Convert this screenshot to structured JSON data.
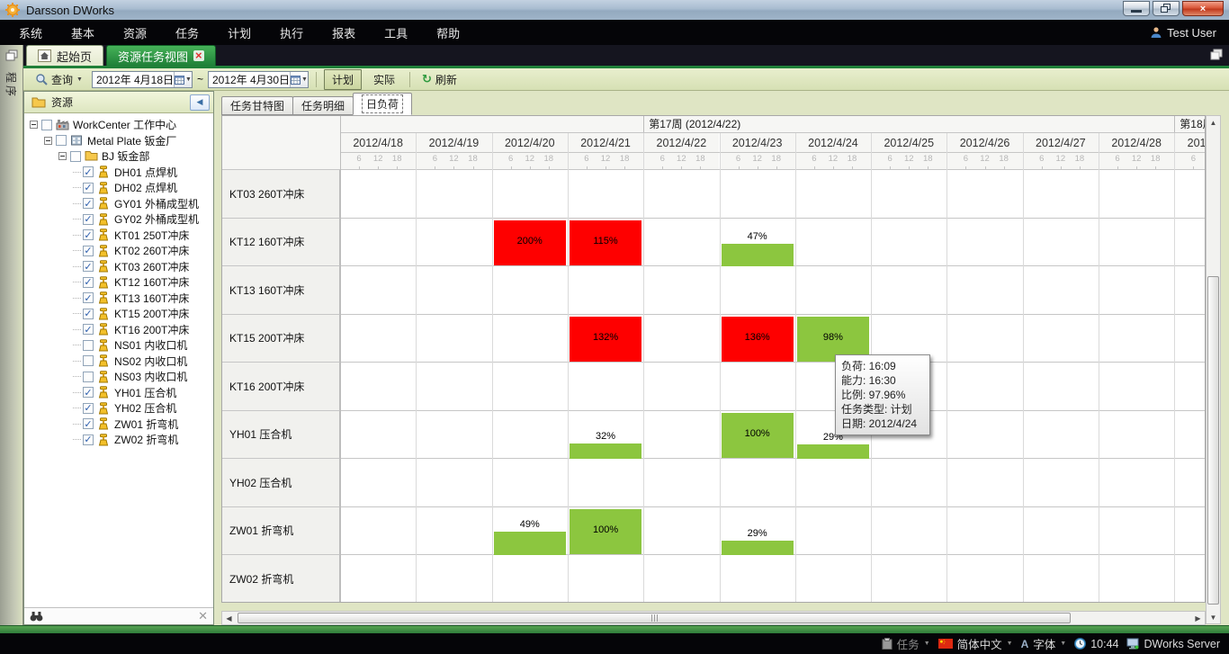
{
  "window": {
    "title": "Darsson DWorks"
  },
  "menu": {
    "items": [
      "系统",
      "基本",
      "资源",
      "任务",
      "计划",
      "执行",
      "报表",
      "工具",
      "帮助"
    ],
    "user": "Test User"
  },
  "doc_tabs": {
    "home": "起始页",
    "active": "资源任务视图"
  },
  "side_strip": {
    "label": "程序"
  },
  "toolbar": {
    "search": "查询",
    "date_from": "2012年 4月18日",
    "range_sep": "~",
    "date_to": "2012年 4月30日",
    "plan": "计划",
    "actual": "实际",
    "refresh": "刷新"
  },
  "tree": {
    "title": "资源",
    "nodes": [
      {
        "level": 0,
        "label": "WorkCenter 工作中心",
        "icon": "workcenter",
        "checked": false,
        "expander": true
      },
      {
        "level": 1,
        "label": "Metal Plate 钣金厂",
        "icon": "plant",
        "checked": false,
        "expander": true
      },
      {
        "level": 2,
        "label": "BJ 钣金部",
        "icon": "folder",
        "checked": false,
        "expander": true
      },
      {
        "level": 3,
        "label": "DH01 点焊机",
        "icon": "machine",
        "checked": true
      },
      {
        "level": 3,
        "label": "DH02 点焊机",
        "icon": "machine",
        "checked": true
      },
      {
        "level": 3,
        "label": "GY01 外桶成型机",
        "icon": "machine",
        "checked": true
      },
      {
        "level": 3,
        "label": "GY02 外桶成型机",
        "icon": "machine",
        "checked": true
      },
      {
        "level": 3,
        "label": "KT01 250T冲床",
        "icon": "machine",
        "checked": true
      },
      {
        "level": 3,
        "label": "KT02 260T冲床",
        "icon": "machine",
        "checked": true
      },
      {
        "level": 3,
        "label": "KT03 260T冲床",
        "icon": "machine",
        "checked": true
      },
      {
        "level": 3,
        "label": "KT12 160T冲床",
        "icon": "machine",
        "checked": true
      },
      {
        "level": 3,
        "label": "KT13 160T冲床",
        "icon": "machine",
        "checked": true
      },
      {
        "level": 3,
        "label": "KT15 200T冲床",
        "icon": "machine",
        "checked": true
      },
      {
        "level": 3,
        "label": "KT16 200T冲床",
        "icon": "machine",
        "checked": true
      },
      {
        "level": 3,
        "label": "NS01 内收口机",
        "icon": "machine",
        "checked": false
      },
      {
        "level": 3,
        "label": "NS02 内收口机",
        "icon": "machine",
        "checked": false
      },
      {
        "level": 3,
        "label": "NS03 内收口机",
        "icon": "machine",
        "checked": false
      },
      {
        "level": 3,
        "label": "YH01 压合机",
        "icon": "machine",
        "checked": true
      },
      {
        "level": 3,
        "label": "YH02 压合机",
        "icon": "machine",
        "checked": true
      },
      {
        "level": 3,
        "label": "ZW01 折弯机",
        "icon": "machine",
        "checked": true
      },
      {
        "level": 3,
        "label": "ZW02 折弯机",
        "icon": "machine",
        "checked": true
      }
    ]
  },
  "view_tabs": {
    "items": [
      "任务甘特图",
      "任务明细",
      "日负荷"
    ],
    "selected": 2
  },
  "chart_data": {
    "type": "heatmap",
    "title": "日负荷",
    "week_bands": [
      {
        "label": "",
        "days": 4
      },
      {
        "label": "第17周 (2012/4/22)",
        "days": 7
      },
      {
        "label": "第18周",
        "days": 1
      }
    ],
    "dates": [
      "2012/4/18",
      "2012/4/19",
      "2012/4/20",
      "2012/4/21",
      "2012/4/22",
      "2012/4/23",
      "2012/4/24",
      "2012/4/25",
      "2012/4/26",
      "2012/4/27",
      "2012/4/28",
      "2012/4/29"
    ],
    "hour_ticks": [
      "6",
      "12",
      "18"
    ],
    "rows": [
      "KT03 260T冲床",
      "KT12 160T冲床",
      "KT13 160T冲床",
      "KT15 200T冲床",
      "KT16 200T冲床",
      "YH01 压合机",
      "YH02 压合机",
      "ZW01 折弯机",
      "ZW02 折弯机"
    ],
    "bars": [
      {
        "row": "KT12 160T冲床",
        "date": "2012/4/20",
        "value": 200,
        "label": "200%",
        "status": "overload"
      },
      {
        "row": "KT12 160T冲床",
        "date": "2012/4/21",
        "value": 115,
        "label": "115%",
        "status": "overload"
      },
      {
        "row": "KT12 160T冲床",
        "date": "2012/4/23",
        "value": 47,
        "label": "47%",
        "status": "normal"
      },
      {
        "row": "KT15 200T冲床",
        "date": "2012/4/21",
        "value": 132,
        "label": "132%",
        "status": "overload"
      },
      {
        "row": "KT15 200T冲床",
        "date": "2012/4/23",
        "value": 136,
        "label": "136%",
        "status": "overload"
      },
      {
        "row": "KT15 200T冲床",
        "date": "2012/4/24",
        "value": 98,
        "label": "98%",
        "status": "normal"
      },
      {
        "row": "YH01 压合机",
        "date": "2012/4/21",
        "value": 32,
        "label": "32%",
        "status": "normal"
      },
      {
        "row": "YH01 压合机",
        "date": "2012/4/23",
        "value": 100,
        "label": "100%",
        "status": "normal"
      },
      {
        "row": "YH01 压合机",
        "date": "2012/4/24",
        "value": 29,
        "label": "29%",
        "status": "normal"
      },
      {
        "row": "ZW01 折弯机",
        "date": "2012/4/20",
        "value": 49,
        "label": "49%",
        "status": "normal"
      },
      {
        "row": "ZW01 折弯机",
        "date": "2012/4/21",
        "value": 100,
        "label": "100%",
        "status": "normal"
      },
      {
        "row": "ZW01 折弯机",
        "date": "2012/4/23",
        "value": 29,
        "label": "29%",
        "status": "normal"
      }
    ]
  },
  "tooltip": {
    "lines": [
      "负荷: 16:09",
      "能力: 16:30",
      "比例: 97.96%",
      "任务类型: 计划",
      "日期: 2012/4/24"
    ]
  },
  "status_bar": {
    "task": "任务",
    "language": "简体中文",
    "font": "字体",
    "time": "10:44",
    "server": "DWorks Server"
  },
  "colors": {
    "overload": "#fe0000",
    "normal": "#8cc63f",
    "active_tab_green": "#1f8038"
  }
}
